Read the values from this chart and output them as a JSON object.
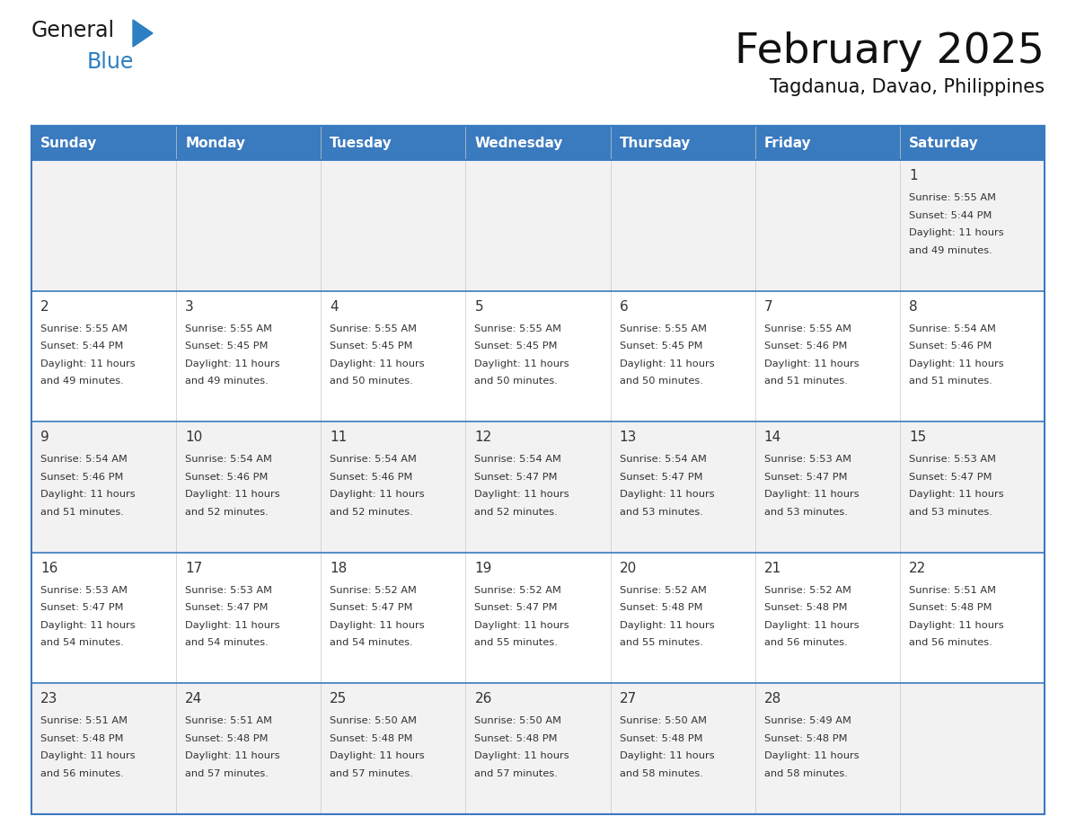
{
  "title": "February 2025",
  "subtitle": "Tagdanua, Davao, Philippines",
  "header_bg": "#3a7abf",
  "header_text_color": "#ffffff",
  "row_bg_light": "#f2f2f2",
  "row_bg_white": "#ffffff",
  "border_color": "#3a7abf",
  "text_color": "#333333",
  "day_headers": [
    "Sunday",
    "Monday",
    "Tuesday",
    "Wednesday",
    "Thursday",
    "Friday",
    "Saturday"
  ],
  "days": [
    {
      "day": 1,
      "col": 6,
      "row": 0,
      "sunrise": "5:55 AM",
      "sunset": "5:44 PM",
      "daylight": "11 hours and 49 minutes."
    },
    {
      "day": 2,
      "col": 0,
      "row": 1,
      "sunrise": "5:55 AM",
      "sunset": "5:44 PM",
      "daylight": "11 hours and 49 minutes."
    },
    {
      "day": 3,
      "col": 1,
      "row": 1,
      "sunrise": "5:55 AM",
      "sunset": "5:45 PM",
      "daylight": "11 hours and 49 minutes."
    },
    {
      "day": 4,
      "col": 2,
      "row": 1,
      "sunrise": "5:55 AM",
      "sunset": "5:45 PM",
      "daylight": "11 hours and 50 minutes."
    },
    {
      "day": 5,
      "col": 3,
      "row": 1,
      "sunrise": "5:55 AM",
      "sunset": "5:45 PM",
      "daylight": "11 hours and 50 minutes."
    },
    {
      "day": 6,
      "col": 4,
      "row": 1,
      "sunrise": "5:55 AM",
      "sunset": "5:45 PM",
      "daylight": "11 hours and 50 minutes."
    },
    {
      "day": 7,
      "col": 5,
      "row": 1,
      "sunrise": "5:55 AM",
      "sunset": "5:46 PM",
      "daylight": "11 hours and 51 minutes."
    },
    {
      "day": 8,
      "col": 6,
      "row": 1,
      "sunrise": "5:54 AM",
      "sunset": "5:46 PM",
      "daylight": "11 hours and 51 minutes."
    },
    {
      "day": 9,
      "col": 0,
      "row": 2,
      "sunrise": "5:54 AM",
      "sunset": "5:46 PM",
      "daylight": "11 hours and 51 minutes."
    },
    {
      "day": 10,
      "col": 1,
      "row": 2,
      "sunrise": "5:54 AM",
      "sunset": "5:46 PM",
      "daylight": "11 hours and 52 minutes."
    },
    {
      "day": 11,
      "col": 2,
      "row": 2,
      "sunrise": "5:54 AM",
      "sunset": "5:46 PM",
      "daylight": "11 hours and 52 minutes."
    },
    {
      "day": 12,
      "col": 3,
      "row": 2,
      "sunrise": "5:54 AM",
      "sunset": "5:47 PM",
      "daylight": "11 hours and 52 minutes."
    },
    {
      "day": 13,
      "col": 4,
      "row": 2,
      "sunrise": "5:54 AM",
      "sunset": "5:47 PM",
      "daylight": "11 hours and 53 minutes."
    },
    {
      "day": 14,
      "col": 5,
      "row": 2,
      "sunrise": "5:53 AM",
      "sunset": "5:47 PM",
      "daylight": "11 hours and 53 minutes."
    },
    {
      "day": 15,
      "col": 6,
      "row": 2,
      "sunrise": "5:53 AM",
      "sunset": "5:47 PM",
      "daylight": "11 hours and 53 minutes."
    },
    {
      "day": 16,
      "col": 0,
      "row": 3,
      "sunrise": "5:53 AM",
      "sunset": "5:47 PM",
      "daylight": "11 hours and 54 minutes."
    },
    {
      "day": 17,
      "col": 1,
      "row": 3,
      "sunrise": "5:53 AM",
      "sunset": "5:47 PM",
      "daylight": "11 hours and 54 minutes."
    },
    {
      "day": 18,
      "col": 2,
      "row": 3,
      "sunrise": "5:52 AM",
      "sunset": "5:47 PM",
      "daylight": "11 hours and 54 minutes."
    },
    {
      "day": 19,
      "col": 3,
      "row": 3,
      "sunrise": "5:52 AM",
      "sunset": "5:47 PM",
      "daylight": "11 hours and 55 minutes."
    },
    {
      "day": 20,
      "col": 4,
      "row": 3,
      "sunrise": "5:52 AM",
      "sunset": "5:48 PM",
      "daylight": "11 hours and 55 minutes."
    },
    {
      "day": 21,
      "col": 5,
      "row": 3,
      "sunrise": "5:52 AM",
      "sunset": "5:48 PM",
      "daylight": "11 hours and 56 minutes."
    },
    {
      "day": 22,
      "col": 6,
      "row": 3,
      "sunrise": "5:51 AM",
      "sunset": "5:48 PM",
      "daylight": "11 hours and 56 minutes."
    },
    {
      "day": 23,
      "col": 0,
      "row": 4,
      "sunrise": "5:51 AM",
      "sunset": "5:48 PM",
      "daylight": "11 hours and 56 minutes."
    },
    {
      "day": 24,
      "col": 1,
      "row": 4,
      "sunrise": "5:51 AM",
      "sunset": "5:48 PM",
      "daylight": "11 hours and 57 minutes."
    },
    {
      "day": 25,
      "col": 2,
      "row": 4,
      "sunrise": "5:50 AM",
      "sunset": "5:48 PM",
      "daylight": "11 hours and 57 minutes."
    },
    {
      "day": 26,
      "col": 3,
      "row": 4,
      "sunrise": "5:50 AM",
      "sunset": "5:48 PM",
      "daylight": "11 hours and 57 minutes."
    },
    {
      "day": 27,
      "col": 4,
      "row": 4,
      "sunrise": "5:50 AM",
      "sunset": "5:48 PM",
      "daylight": "11 hours and 58 minutes."
    },
    {
      "day": 28,
      "col": 5,
      "row": 4,
      "sunrise": "5:49 AM",
      "sunset": "5:48 PM",
      "daylight": "11 hours and 58 minutes."
    }
  ],
  "num_rows": 5,
  "num_cols": 7,
  "logo_dark_color": "#1a1a1a",
  "logo_blue_color": "#2b7fc2"
}
